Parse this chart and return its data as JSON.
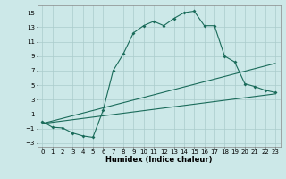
{
  "bg_color": "#cce8e8",
  "grid_color": "#aacccc",
  "line_color": "#1a6b5a",
  "xlabel": "Humidex (Indice chaleur)",
  "xlim": [
    -0.5,
    23.5
  ],
  "ylim": [
    -3.5,
    16
  ],
  "yticks": [
    -3,
    -1,
    1,
    3,
    5,
    7,
    9,
    11,
    13,
    15
  ],
  "xticks": [
    0,
    1,
    2,
    3,
    4,
    5,
    6,
    7,
    8,
    9,
    10,
    11,
    12,
    13,
    14,
    15,
    16,
    17,
    18,
    19,
    20,
    21,
    22,
    23
  ],
  "series1_x": [
    0,
    1,
    2,
    3,
    4,
    5,
    6,
    7,
    8,
    9,
    10,
    11,
    12,
    13,
    14,
    15,
    16,
    17,
    18,
    19,
    20,
    21,
    22,
    23
  ],
  "series1_y": [
    0,
    -0.8,
    -0.9,
    -1.6,
    -2.0,
    -2.2,
    1.5,
    7.0,
    9.3,
    12.2,
    13.2,
    13.8,
    13.2,
    14.2,
    15.0,
    15.2,
    13.2,
    13.2,
    9.0,
    8.2,
    5.2,
    4.8,
    4.3,
    4.0
  ],
  "series2_x": [
    0,
    23
  ],
  "series2_y": [
    -0.3,
    8.0
  ],
  "series3_x": [
    0,
    23
  ],
  "series3_y": [
    -0.3,
    3.8
  ]
}
